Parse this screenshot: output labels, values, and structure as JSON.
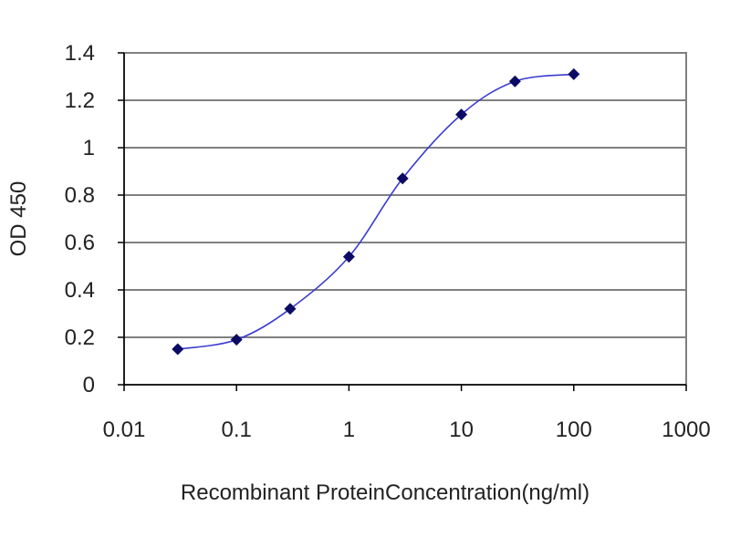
{
  "chart_data": {
    "type": "line",
    "xlabel": "Recombinant ProteinConcentration(ng/ml)",
    "ylabel": "OD 450",
    "x_scale": "log",
    "xlim": [
      0.01,
      1000
    ],
    "ylim": [
      0,
      1.4
    ],
    "x_ticks": [
      "0.01",
      "0.1",
      "1",
      "10",
      "100",
      "1000"
    ],
    "y_ticks": [
      "0",
      "0.2",
      "0.4",
      "0.6",
      "0.8",
      "1",
      "1.2",
      "1.4"
    ],
    "grid": "horizontal",
    "legend": "none",
    "series": [
      {
        "x": [
          0.03,
          0.1,
          0.3,
          1,
          3,
          10,
          30,
          100
        ],
        "y": [
          0.15,
          0.19,
          0.32,
          0.54,
          0.87,
          1.14,
          1.28,
          1.31
        ]
      }
    ],
    "colors": {
      "plot_bg": "#ffffff",
      "gridline": "#808080",
      "frame": "#808080",
      "line": "#3a3ad0",
      "marker": "#0b0b66"
    }
  }
}
